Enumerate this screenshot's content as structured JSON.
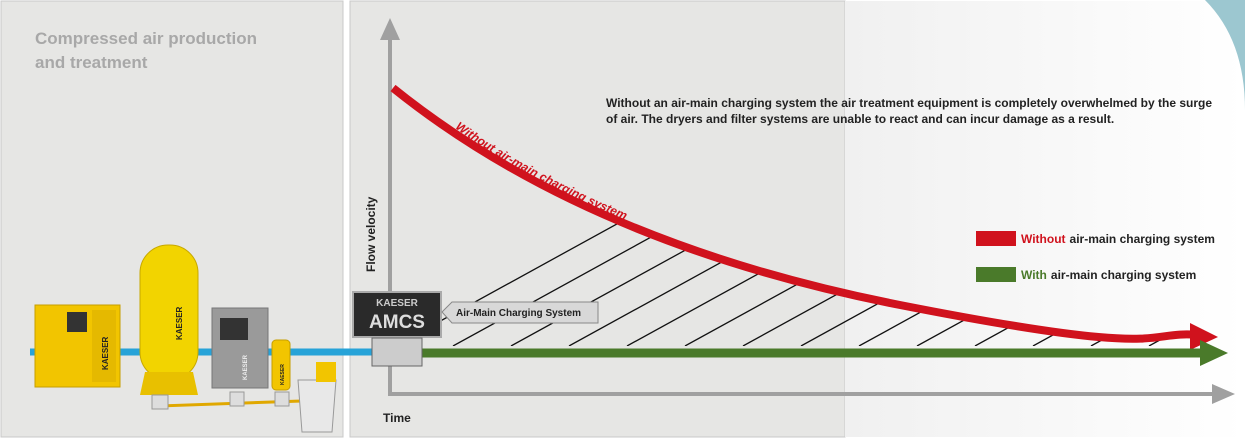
{
  "left_panel": {
    "title_lines": [
      "Compressed air production",
      "and treatment"
    ],
    "machine_labels": [
      "KAESER",
      "KAESER",
      "KAESER",
      "KAESER"
    ]
  },
  "chart": {
    "y_axis_label": "Flow velocity",
    "x_axis_label": "Time",
    "description": "Without an air-main charging system the air treatment equipment is completely overwhelmed by the surge of air. The dryers and filter systems are unable to react and can incur damage as a result.",
    "curve_label": "Without air-main charging system",
    "legend": [
      {
        "emphasis": "Without",
        "text": "air-main charging system"
      },
      {
        "emphasis": "With",
        "text": "air-main charging system"
      }
    ],
    "device": {
      "brand": "KAESER",
      "name": "AMCS",
      "callout": "Air-Main Charging System"
    }
  }
}
